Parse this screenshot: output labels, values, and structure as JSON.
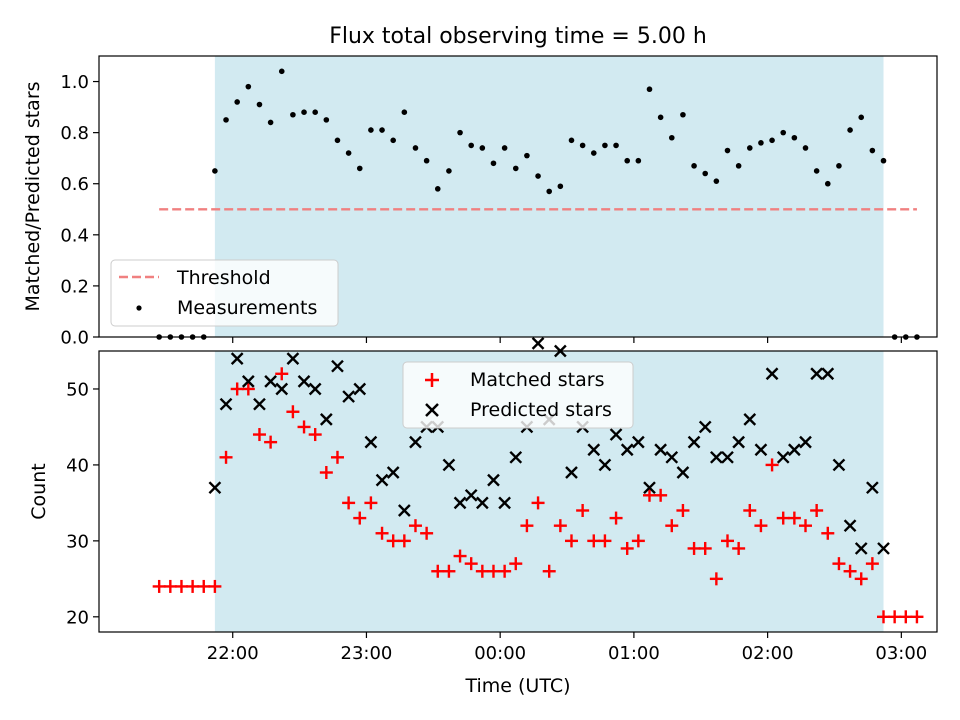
{
  "chart_data": [
    {
      "type": "scatter",
      "title": "Flux total observing time = 5.00 h",
      "xlabel": "",
      "ylabel": "Matched/Predicted stars",
      "ylim": [
        0,
        1.1
      ],
      "yticks": [
        "0.0",
        "0.2",
        "0.4",
        "0.6",
        "0.8",
        "1.0"
      ],
      "observing_window": [
        "21:52",
        "02:52"
      ],
      "threshold": 0.5,
      "legend": {
        "placement": "lower-left",
        "entries": [
          "Threshold",
          "Measurements"
        ]
      },
      "series": [
        {
          "name": "Measurements",
          "x": [
            "21:27",
            "21:32",
            "21:37",
            "21:42",
            "21:47",
            "21:52",
            "21:57",
            "22:02",
            "22:07",
            "22:12",
            "22:17",
            "22:22",
            "22:27",
            "22:32",
            "22:37",
            "22:42",
            "22:47",
            "22:52",
            "22:57",
            "23:02",
            "23:07",
            "23:12",
            "23:17",
            "23:22",
            "23:27",
            "23:32",
            "23:37",
            "23:42",
            "23:47",
            "23:52",
            "23:57",
            "00:02",
            "00:07",
            "00:12",
            "00:17",
            "00:22",
            "00:27",
            "00:32",
            "00:37",
            "00:42",
            "00:47",
            "00:52",
            "00:57",
            "01:02",
            "01:07",
            "01:12",
            "01:17",
            "01:22",
            "01:27",
            "01:32",
            "01:37",
            "01:42",
            "01:47",
            "01:52",
            "01:57",
            "02:02",
            "02:07",
            "02:12",
            "02:17",
            "02:22",
            "02:27",
            "02:32",
            "02:37",
            "02:42",
            "02:47",
            "02:52",
            "02:57",
            "03:02",
            "03:07"
          ],
          "y": [
            0,
            0,
            0,
            0,
            0,
            0.65,
            0.85,
            0.92,
            0.98,
            0.91,
            0.84,
            1.04,
            0.87,
            0.88,
            0.88,
            0.85,
            0.77,
            0.72,
            0.66,
            0.81,
            0.81,
            0.77,
            0.88,
            0.74,
            0.69,
            0.58,
            0.65,
            0.8,
            0.75,
            0.74,
            0.68,
            0.74,
            0.66,
            0.71,
            0.63,
            0.57,
            0.59,
            0.77,
            0.75,
            0.72,
            0.75,
            0.75,
            0.69,
            0.69,
            0.97,
            0.86,
            0.78,
            0.87,
            0.67,
            0.64,
            0.61,
            0.73,
            0.67,
            0.74,
            0.76,
            0.77,
            0.8,
            0.78,
            0.74,
            0.65,
            0.6,
            0.67,
            0.81,
            0.86,
            0.73,
            0.69,
            0,
            0,
            0
          ]
        }
      ]
    },
    {
      "type": "scatter",
      "title": "",
      "xlabel": "Time (UTC)",
      "ylabel": "Count",
      "ylim": [
        18,
        55
      ],
      "yticks": [
        "20",
        "30",
        "40",
        "50"
      ],
      "xticks": [
        "22:00",
        "23:00",
        "00:00",
        "01:00",
        "02:00",
        "03:00"
      ],
      "observing_window": [
        "21:52",
        "02:52"
      ],
      "legend": {
        "placement": "top-center",
        "entries": [
          "Matched stars",
          "Predicted stars"
        ]
      },
      "series": [
        {
          "name": "Matched stars",
          "x": [
            "21:27",
            "21:32",
            "21:37",
            "21:42",
            "21:47",
            "21:52",
            "21:57",
            "22:02",
            "22:07",
            "22:12",
            "22:17",
            "22:22",
            "22:27",
            "22:32",
            "22:37",
            "22:42",
            "22:47",
            "22:52",
            "22:57",
            "23:02",
            "23:07",
            "23:12",
            "23:17",
            "23:22",
            "23:27",
            "23:32",
            "23:37",
            "23:42",
            "23:47",
            "23:52",
            "23:57",
            "00:02",
            "00:07",
            "00:12",
            "00:17",
            "00:22",
            "00:27",
            "00:32",
            "00:37",
            "00:42",
            "00:47",
            "00:52",
            "00:57",
            "01:02",
            "01:07",
            "01:12",
            "01:17",
            "01:22",
            "01:27",
            "01:32",
            "01:37",
            "01:42",
            "01:47",
            "01:52",
            "01:57",
            "02:02",
            "02:07",
            "02:12",
            "02:17",
            "02:22",
            "02:27",
            "02:32",
            "02:37",
            "02:42",
            "02:47",
            "02:52",
            "02:57",
            "03:02",
            "03:07"
          ],
          "y": [
            24,
            24,
            24,
            24,
            24,
            24,
            41,
            50,
            50,
            44,
            43,
            52,
            47,
            45,
            44,
            39,
            41,
            35,
            33,
            35,
            31,
            30,
            30,
            32,
            31,
            26,
            26,
            28,
            27,
            26,
            26,
            26,
            27,
            32,
            35,
            26,
            32,
            30,
            34,
            30,
            30,
            33,
            29,
            30,
            36,
            36,
            32,
            34,
            29,
            29,
            25,
            30,
            29,
            34,
            32,
            40,
            33,
            33,
            32,
            34,
            31,
            27,
            26,
            25,
            27,
            20,
            20,
            20,
            20
          ]
        },
        {
          "name": "Predicted stars",
          "x": [
            "21:52",
            "21:57",
            "22:02",
            "22:07",
            "22:12",
            "22:17",
            "22:22",
            "22:27",
            "22:32",
            "22:37",
            "22:42",
            "22:47",
            "22:52",
            "22:57",
            "23:02",
            "23:07",
            "23:12",
            "23:17",
            "23:22",
            "23:27",
            "23:32",
            "23:37",
            "23:42",
            "23:47",
            "23:52",
            "23:57",
            "00:02",
            "00:07",
            "00:12",
            "00:17",
            "00:22",
            "00:27",
            "00:32",
            "00:37",
            "00:42",
            "00:47",
            "00:52",
            "00:57",
            "01:02",
            "01:07",
            "01:12",
            "01:17",
            "01:22",
            "01:27",
            "01:32",
            "01:37",
            "01:42",
            "01:47",
            "01:52",
            "01:57",
            "02:02",
            "02:07",
            "02:12",
            "02:17",
            "02:22",
            "02:27",
            "02:32",
            "02:37",
            "02:42",
            "02:47",
            "02:52"
          ],
          "y": [
            37,
            48,
            54,
            51,
            48,
            51,
            50,
            54,
            51,
            50,
            46,
            53,
            49,
            50,
            43,
            38,
            39,
            34,
            43,
            45,
            45,
            40,
            35,
            36,
            35,
            38,
            35,
            41,
            45,
            56,
            46,
            55,
            39,
            45,
            42,
            40,
            44,
            42,
            43,
            37,
            42,
            41,
            39,
            43,
            45,
            41,
            41,
            43,
            46,
            42,
            52,
            41,
            42,
            43,
            52,
            52,
            40,
            32,
            29,
            37,
            29
          ]
        }
      ]
    }
  ],
  "colors": {
    "window": "#add8e6",
    "threshold": "#f08080",
    "measurements": "#000000",
    "matched": "#ff0000",
    "predicted": "#000000"
  }
}
